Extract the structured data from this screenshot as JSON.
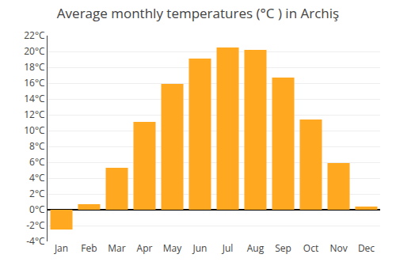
{
  "chart_data": {
    "type": "bar",
    "title": "Average monthly temperatures (°C ) in Archiş",
    "categories": [
      "Jan",
      "Feb",
      "Mar",
      "Apr",
      "May",
      "Jun",
      "Jul",
      "Aug",
      "Sep",
      "Oct",
      "Nov",
      "Dec"
    ],
    "values": [
      -2.5,
      0.7,
      5.3,
      11.1,
      15.9,
      19.1,
      20.5,
      20.2,
      16.7,
      11.4,
      5.9,
      0.4
    ],
    "color": "#FFA820",
    "ylim": [
      -4,
      22
    ],
    "yticks": [
      {
        "value": -4,
        "label": "-4°C"
      },
      {
        "value": -2,
        "label": "-2°C"
      },
      {
        "value": 0,
        "label": "0°C"
      },
      {
        "value": 2,
        "label": "2°C"
      },
      {
        "value": 4,
        "label": "4°C"
      },
      {
        "value": 6,
        "label": "6°C"
      },
      {
        "value": 8,
        "label": "8°C"
      },
      {
        "value": 10,
        "label": "10°C"
      },
      {
        "value": 12,
        "label": "12°C"
      },
      {
        "value": 14,
        "label": "14°C"
      },
      {
        "value": 16,
        "label": "16°C"
      },
      {
        "value": 18,
        "label": "18°C"
      },
      {
        "value": 20,
        "label": "20°C"
      },
      {
        "value": 22,
        "label": "22°C"
      }
    ],
    "grid": true
  }
}
